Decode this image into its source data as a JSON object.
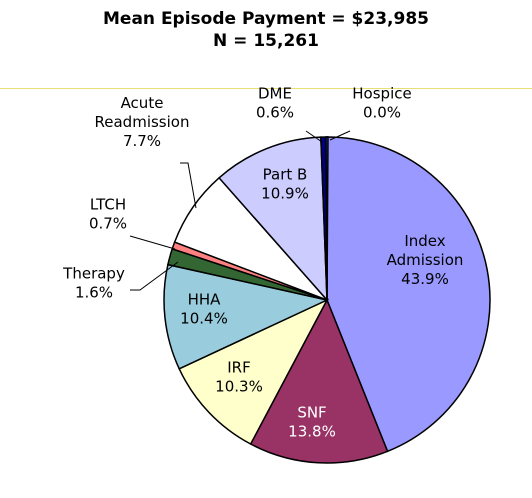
{
  "header": {
    "title_line1": "Mean Episode Payment = $23,985",
    "title_line2": "N = 15,261"
  },
  "chart_data": {
    "type": "pie",
    "title": "Mean Episode Payment = $23,985",
    "subtitle": "N = 15,261",
    "slices": [
      {
        "name": "Index Admission",
        "label_lines": [
          "Index",
          "Admission"
        ],
        "value": 43.9,
        "value_text": "43.9%",
        "color": "#9999ff"
      },
      {
        "name": "SNF",
        "label_lines": [
          "SNF"
        ],
        "value": 13.8,
        "value_text": "13.8%",
        "color": "#993366"
      },
      {
        "name": "IRF",
        "label_lines": [
          "IRF"
        ],
        "value": 10.3,
        "value_text": "10.3%",
        "color": "#ffffcc"
      },
      {
        "name": "HHA",
        "label_lines": [
          "HHA"
        ],
        "value": 10.4,
        "value_text": "10.4%",
        "color": "#99ccdd"
      },
      {
        "name": "Therapy",
        "label_lines": [
          "Therapy"
        ],
        "value": 1.6,
        "value_text": "1.6%",
        "color": "#336633"
      },
      {
        "name": "LTCH",
        "label_lines": [
          "LTCH"
        ],
        "value": 0.7,
        "value_text": "0.7%",
        "color": "#ff8080"
      },
      {
        "name": "Acute Readmission",
        "label_lines": [
          "Acute",
          "Readmission"
        ],
        "value": 7.7,
        "value_text": "7.7%",
        "color": "#ffffff"
      },
      {
        "name": "Part B",
        "label_lines": [
          "Part B"
        ],
        "value": 10.9,
        "value_text": "10.9%",
        "color": "#ccccff"
      },
      {
        "name": "DME",
        "label_lines": [
          "DME"
        ],
        "value": 0.6,
        "value_text": "0.6%",
        "color": "#000080"
      },
      {
        "name": "Hospice",
        "label_lines": [
          "Hospice"
        ],
        "value": 0.0,
        "value_text": "0.0%",
        "color": "#3366cc"
      }
    ],
    "legend": "none",
    "labels": "outside-with-leaders-for-small-slices"
  }
}
